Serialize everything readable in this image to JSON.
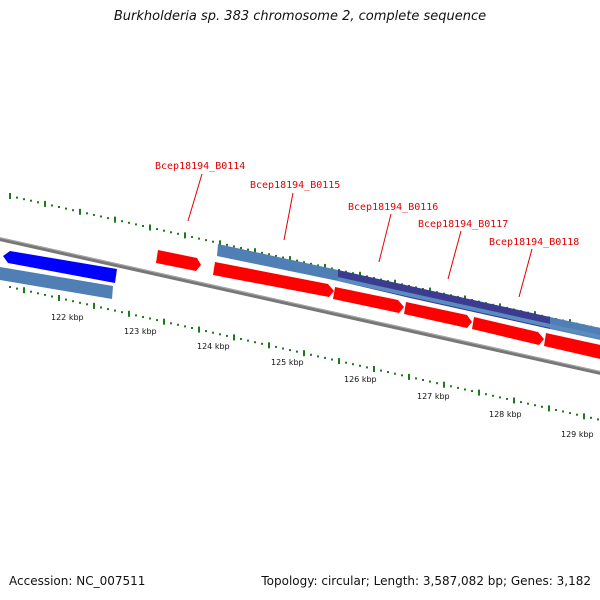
{
  "title": "Burkholderia sp. 383 chromosome 2, complete sequence",
  "footer": {
    "accession": "Accession: NC_007511",
    "summary": "Topology: circular; Length: 3,587,082 bp; Genes: 3,182"
  },
  "colors": {
    "backbone": "#777777",
    "forward_cds": "#ff0000",
    "reverse_cds": "#0000ff",
    "gene_feature": "#4f7fb4",
    "highlighted_gene": "#3b3b8f",
    "tick": "#1c7a1c",
    "label": "#e00000"
  },
  "scale": {
    "ticks": [
      {
        "label": "122 kbp"
      },
      {
        "label": "123 kbp"
      },
      {
        "label": "124 kbp"
      },
      {
        "label": "125 kbp"
      },
      {
        "label": "126 kbp"
      },
      {
        "label": "127 kbp"
      },
      {
        "label": "128 kbp"
      },
      {
        "label": "129 kbp"
      }
    ]
  },
  "gene_labels": [
    {
      "label": "Bcep18194_B0114"
    },
    {
      "label": "Bcep18194_B0115"
    },
    {
      "label": "Bcep18194_B0116"
    },
    {
      "label": "Bcep18194_B0117"
    },
    {
      "label": "Bcep18194_B0118"
    }
  ]
}
